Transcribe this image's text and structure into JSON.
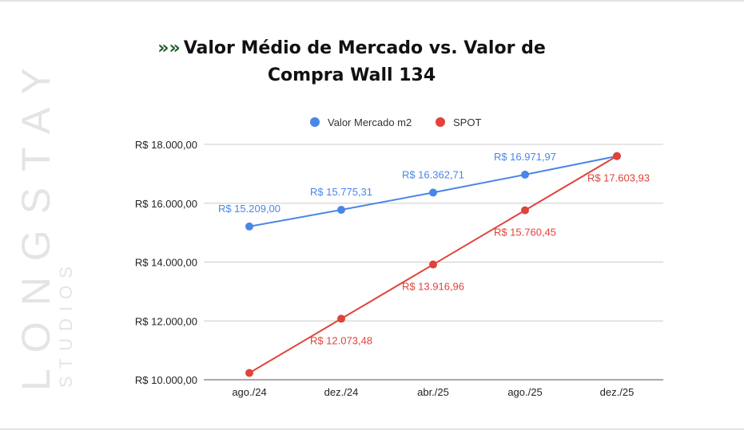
{
  "watermark": {
    "brand": "LONGSTAY",
    "sub": "STUDIOS"
  },
  "chart_data": {
    "type": "line",
    "title_marker": "»»",
    "title": "Valor Médio de Mercado vs. Valor de Compra Wall 134",
    "title_line1": "Valor Médio de Mercado vs. Valor de",
    "title_line2": "Compra Wall 134",
    "categories": [
      "ago./24",
      "dez./24",
      "abr./25",
      "ago./25",
      "dez./25"
    ],
    "ylim": [
      10000,
      18000
    ],
    "yticks": [
      10000,
      12000,
      14000,
      16000,
      18000
    ],
    "ytick_labels": [
      "R$ 10.000,00",
      "R$ 12.000,00",
      "R$ 14.000,00",
      "R$ 16.000,00",
      "R$ 18.000,00"
    ],
    "grid": true,
    "legend_position": "top",
    "series": [
      {
        "name": "Valor Mercado m2",
        "color": "#4a86e8",
        "values": [
          15209.0,
          15775.31,
          16362.71,
          16971.97,
          17600.0
        ],
        "labels": [
          "R$ 15.209,00",
          "R$ 15.775,31",
          "R$ 16.362,71",
          "R$ 16.971,97",
          ""
        ]
      },
      {
        "name": "SPOT",
        "color": "#e0433a",
        "values": [
          10230.0,
          12073.48,
          13916.96,
          15760.45,
          17603.93
        ],
        "labels": [
          "",
          "R$ 12.073,48",
          "R$ 13.916,96",
          "R$ 15.760,45",
          "R$ 17.603,93"
        ]
      }
    ]
  }
}
